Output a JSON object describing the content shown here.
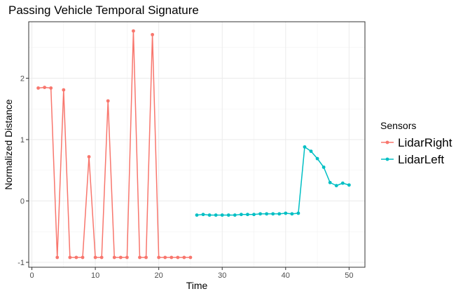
{
  "chart_data": {
    "type": "line",
    "title": "Passing Vehicle Temporal Signature",
    "xlabel": "Time",
    "ylabel": "Normalized Distance",
    "xlim": [
      -0.5,
      52.5
    ],
    "ylim": [
      -1.08,
      2.92
    ],
    "x_ticks": [
      0,
      10,
      20,
      30,
      40,
      50
    ],
    "y_ticks": [
      -1,
      0,
      1,
      2
    ],
    "grid": true,
    "legend": {
      "title": "Sensors",
      "placement": "right"
    },
    "series": [
      {
        "name": "LidarRight",
        "color": "#F8766D",
        "x": [
          1,
          2,
          3,
          4,
          5,
          6,
          7,
          8,
          9,
          10,
          11,
          12,
          13,
          14,
          15,
          16,
          17,
          18,
          19,
          20,
          21,
          22,
          23,
          24,
          25
        ],
        "y": [
          1.84,
          1.85,
          1.84,
          -0.92,
          1.81,
          -0.92,
          -0.92,
          -0.92,
          0.72,
          -0.92,
          -0.92,
          1.63,
          -0.92,
          -0.92,
          -0.92,
          2.77,
          -0.92,
          -0.92,
          2.71,
          -0.92,
          -0.92,
          -0.92,
          -0.92,
          -0.92,
          -0.92
        ]
      },
      {
        "name": "LidarLeft",
        "color": "#00BFC4",
        "x": [
          26,
          27,
          28,
          29,
          30,
          31,
          32,
          33,
          34,
          35,
          36,
          37,
          38,
          39,
          40,
          41,
          42,
          43,
          44,
          45,
          46,
          47,
          48,
          49,
          50
        ],
        "y": [
          -0.23,
          -0.22,
          -0.23,
          -0.23,
          -0.23,
          -0.23,
          -0.23,
          -0.22,
          -0.22,
          -0.22,
          -0.21,
          -0.21,
          -0.21,
          -0.21,
          -0.2,
          -0.21,
          -0.2,
          0.88,
          0.81,
          0.69,
          0.55,
          0.3,
          0.25,
          0.29,
          0.26
        ]
      }
    ]
  }
}
